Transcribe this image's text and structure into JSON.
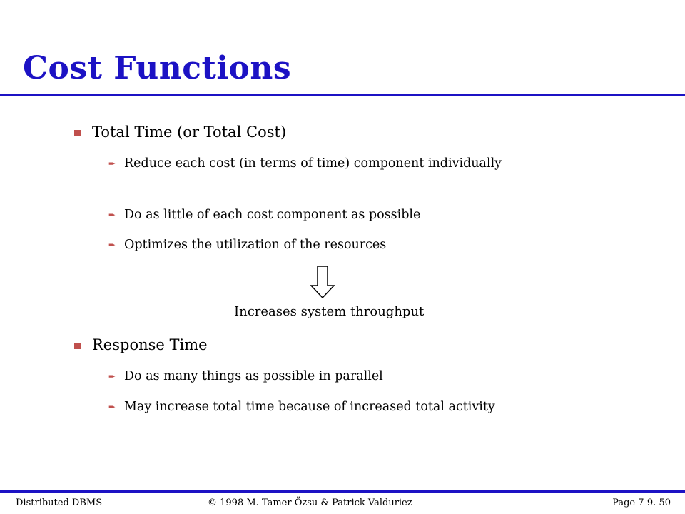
{
  "slide": {
    "title": "Cost Functions",
    "sections": [
      {
        "heading": "Total Time (or Total Cost)",
        "points": [
          "Reduce each cost (in terms of time) component individually",
          "Do as little of each cost component as possible",
          "Optimizes the utilization of the resources"
        ]
      },
      {
        "heading": "Response Time",
        "points": [
          "Do as many things as possible in parallel",
          "May increase total time because of increased total activity"
        ]
      }
    ],
    "result_text": "Increases system throughput"
  },
  "footer": {
    "left": "Distributed DBMS",
    "center": "© 1998 M. Tamer Özsu & Patrick Valduriez",
    "right": "Page 7-9. 50"
  },
  "colors": {
    "title": "#1c12c4",
    "rule": "#1c12c4",
    "bullet": "#c0504d"
  }
}
